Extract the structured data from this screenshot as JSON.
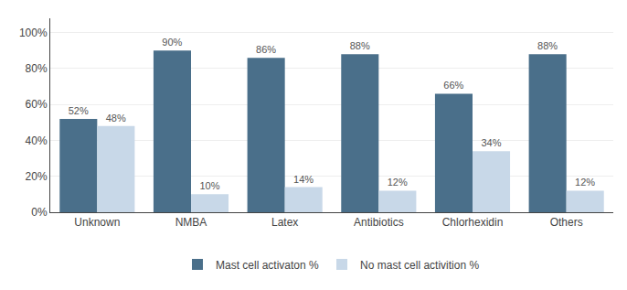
{
  "chart_data": {
    "type": "bar",
    "categories": [
      "Unknown",
      "NMBA",
      "Latex",
      "Antibiotics",
      "Chlorhexidin",
      "Others"
    ],
    "series": [
      {
        "name": "Mast cell activaton %",
        "color": "#4a6f8a",
        "values": [
          52,
          90,
          86,
          88,
          66,
          88
        ],
        "value_labels": [
          "52%",
          "90%",
          "86%",
          "88%",
          "66%",
          "88%"
        ]
      },
      {
        "name": "No mast cell activition %",
        "color": "#c8d8e8",
        "values": [
          48,
          10,
          14,
          12,
          34,
          12
        ],
        "value_labels": [
          "48%",
          "10%",
          "14%",
          "12%",
          "34%",
          "12%"
        ]
      }
    ],
    "ylim": [
      0,
      108
    ],
    "yticks": [
      {
        "value": 0,
        "label": "0%"
      },
      {
        "value": 20,
        "label": "20%"
      },
      {
        "value": 40,
        "label": "40%"
      },
      {
        "value": 60,
        "label": "60%"
      },
      {
        "value": 80,
        "label": "80%"
      },
      {
        "value": 100,
        "label": "100%"
      }
    ],
    "grid": true,
    "legend": "bottom",
    "data_labels": true
  }
}
